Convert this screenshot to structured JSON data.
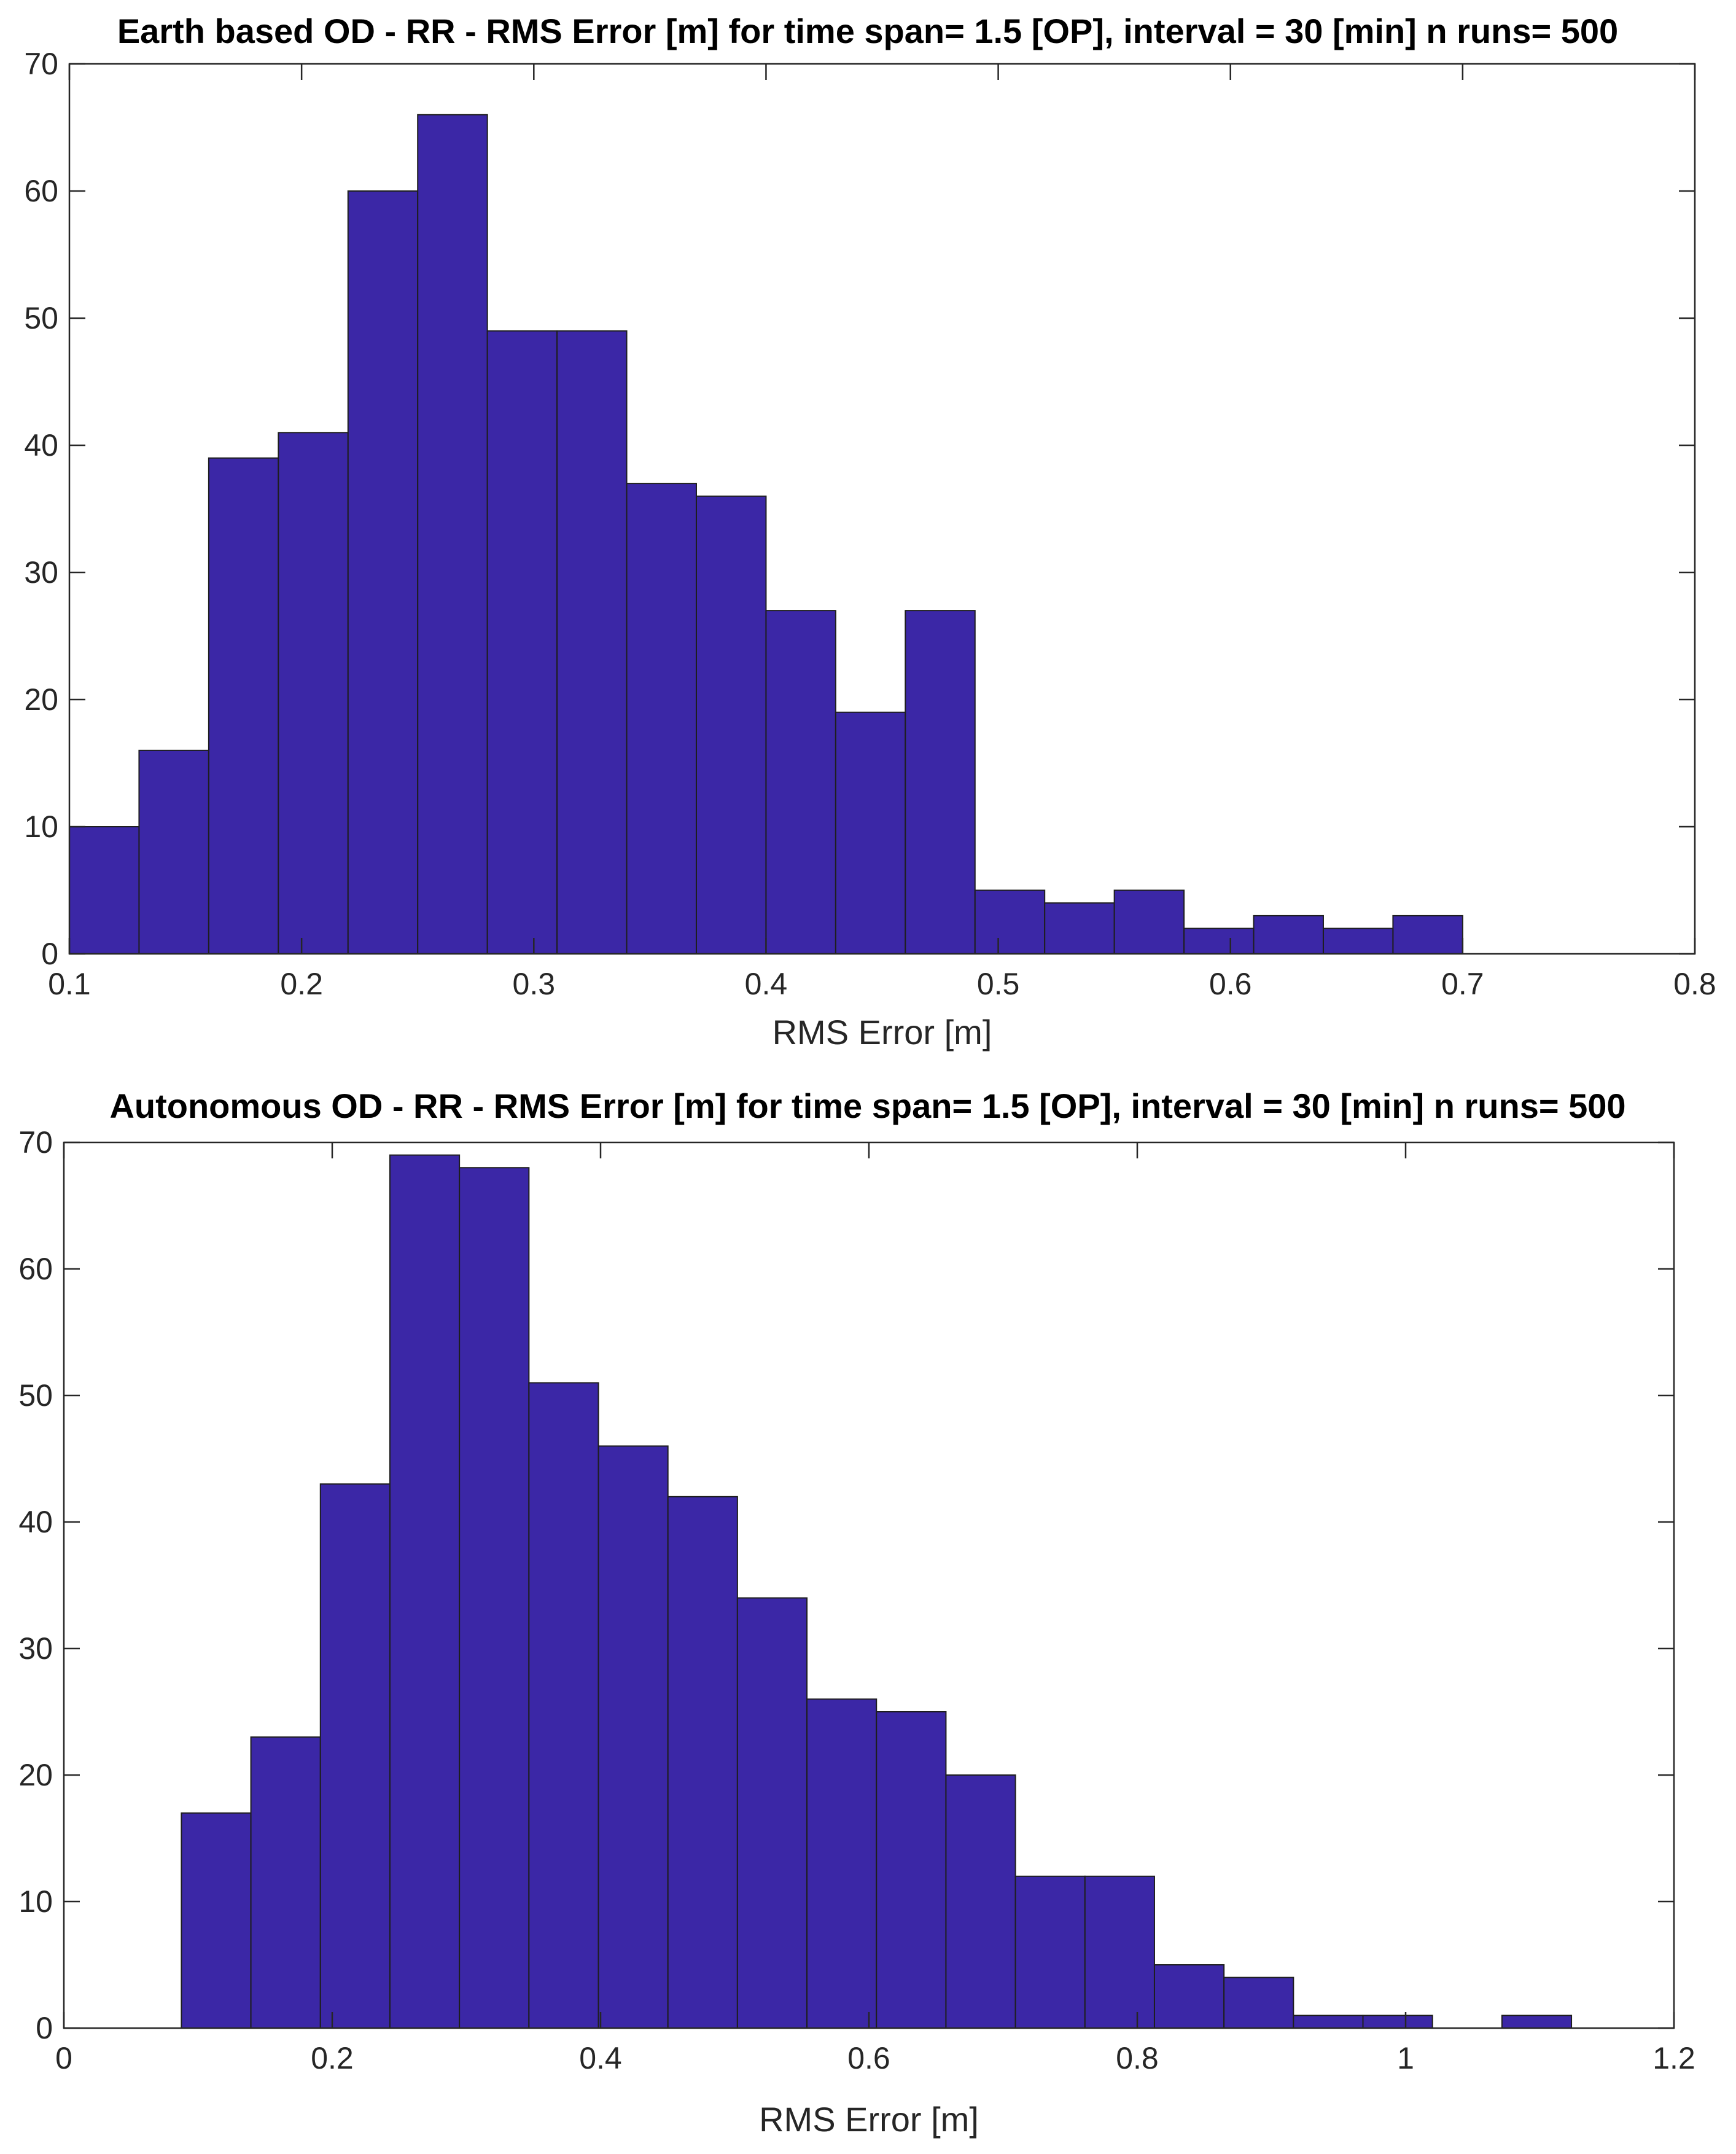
{
  "chart_data": [
    {
      "type": "bar",
      "title": "Earth based OD - RR - RMS  Error [m] for time span= 1.5 [OP], interval = 30 [min] n runs= 500",
      "xlabel": "RMS Error [m]",
      "ylabel": "",
      "xlim": [
        0.1,
        0.8
      ],
      "ylim": [
        0,
        70
      ],
      "xticks": [
        "0.1",
        "0.2",
        "0.3",
        "0.4",
        "0.5",
        "0.6",
        "0.7",
        "0.8"
      ],
      "yticks": [
        "0",
        "10",
        "20",
        "30",
        "40",
        "50",
        "60",
        "70"
      ],
      "bin_start": 0.1,
      "bin_width": 0.03,
      "values": [
        10,
        16,
        39,
        41,
        60,
        66,
        49,
        49,
        37,
        36,
        27,
        19,
        27,
        5,
        4,
        5,
        2,
        3,
        2,
        3
      ],
      "grid": false,
      "color": "#3b27a6"
    },
    {
      "type": "bar",
      "title": "Autonomous OD - RR - RMS  Error [m] for time span= 1.5 [OP], interval = 30 [min] n runs= 500",
      "xlabel": "RMS Error [m]",
      "ylabel": "",
      "xlim": [
        0,
        1.2
      ],
      "ylim": [
        0,
        70
      ],
      "xticks": [
        "0",
        "0.2",
        "0.4",
        "0.6",
        "0.8",
        "1",
        "1.2"
      ],
      "yticks": [
        "0",
        "10",
        "20",
        "30",
        "40",
        "50",
        "60",
        "70"
      ],
      "bin_start": 0.0876,
      "bin_width": 0.0518,
      "values": [
        17,
        23,
        43,
        69,
        68,
        51,
        46,
        42,
        34,
        26,
        25,
        20,
        12,
        12,
        5,
        4,
        1,
        1,
        0,
        1
      ],
      "grid": false,
      "color": "#3b27a6"
    }
  ]
}
